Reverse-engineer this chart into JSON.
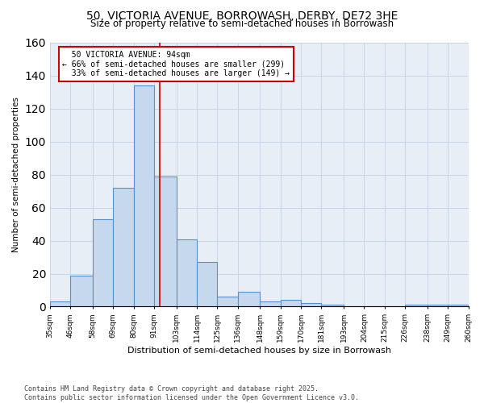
{
  "title": "50, VICTORIA AVENUE, BORROWASH, DERBY, DE72 3HE",
  "subtitle": "Size of property relative to semi-detached houses in Borrowash",
  "xlabel": "Distribution of semi-detached houses by size in Borrowash",
  "ylabel": "Number of semi-detached properties",
  "bar_labels": [
    "35sqm",
    "46sqm",
    "58sqm",
    "69sqm",
    "80sqm",
    "91sqm",
    "103sqm",
    "114sqm",
    "125sqm",
    "136sqm",
    "148sqm",
    "159sqm",
    "170sqm",
    "181sqm",
    "193sqm",
    "204sqm",
    "215sqm",
    "226sqm",
    "238sqm",
    "249sqm",
    "260sqm"
  ],
  "hist_values": [
    3,
    19,
    53,
    72,
    134,
    79,
    41,
    27,
    6,
    9,
    3,
    4,
    2,
    1,
    0,
    0,
    0,
    1,
    1,
    1,
    0
  ],
  "bar_color": "#c5d8ed",
  "bar_edge_color": "#5b8fc9",
  "property_value": 94,
  "property_label": "50 VICTORIA AVENUE: 94sqm",
  "pct_smaller": 66,
  "count_smaller": 299,
  "pct_larger": 33,
  "count_larger": 149,
  "vline_color": "#cc0000",
  "annotation_box_color": "#cc0000",
  "bin_edges": [
    35,
    46,
    58,
    69,
    80,
    91,
    103,
    114,
    125,
    136,
    148,
    159,
    170,
    181,
    193,
    204,
    215,
    226,
    238,
    249,
    260
  ],
  "ylim": [
    0,
    160
  ],
  "yticks": [
    0,
    20,
    40,
    60,
    80,
    100,
    120,
    140,
    160
  ],
  "footer": "Contains HM Land Registry data © Crown copyright and database right 2025.\nContains public sector information licensed under the Open Government Licence v3.0.",
  "grid_color": "#c8d4e8",
  "bg_color": "#e8eef6"
}
